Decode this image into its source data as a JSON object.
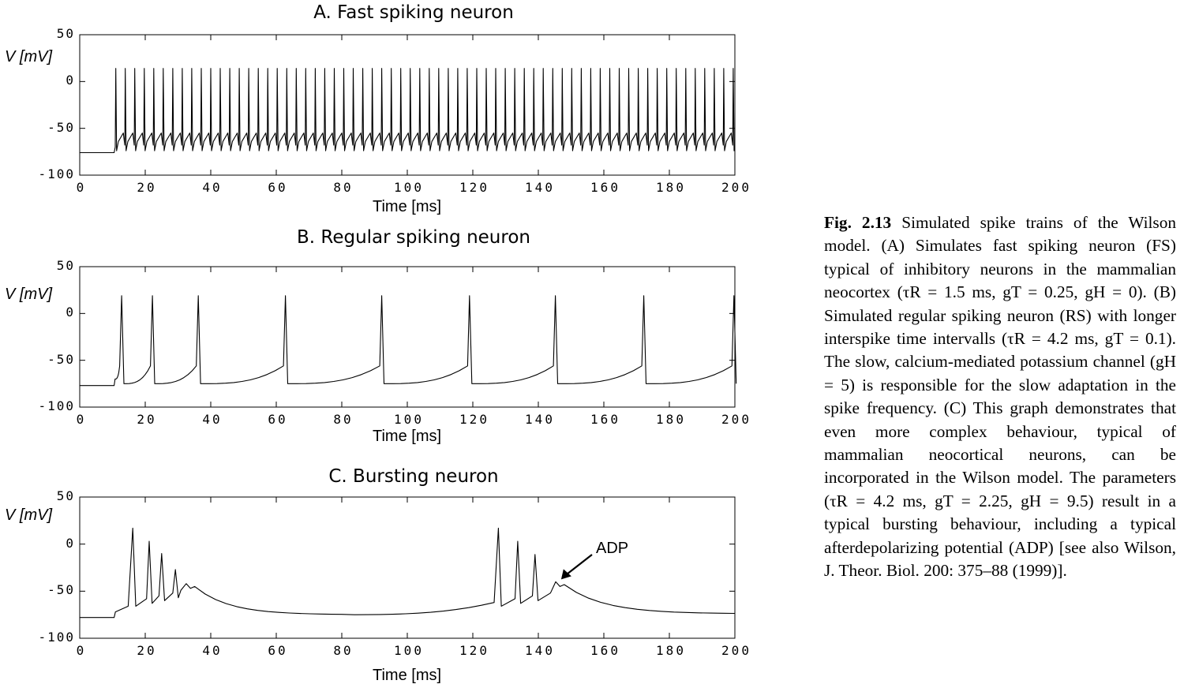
{
  "figure": {
    "caption_label": "Fig. 2.13",
    "caption_text": "Simulated spike trains of the Wilson model. (A) Simulates fast spiking neuron (FS) typical of inhibitory neurons in the mammalian neocortex (τR = 1.5 ms, gT = 0.25, gH = 0). (B) Simulated regular spiking neuron (RS) with longer interspike time intervalls (τR = 4.2 ms, gT = 0.1). The slow, calcium-mediated potassium channel (gH = 5) is responsible for the slow adaptation in the spike frequency. (C) This graph demonstrates that even more complex behaviour, typical of mammalian neocortical neurons, can be incorporated in the Wilson model. The parameters (τR = 4.2 ms, gT = 2.25, gH = 9.5) result in a typical bursting behaviour, including a typical afterdepolarizing potential (ADP) [see also Wilson, J. Theor. Biol. 200: 375–88 (1999)]."
  },
  "chart_data": [
    {
      "type": "line",
      "title": "A. Fast spiking neuron",
      "xlabel": "Time [ms]",
      "ylabel": "V [mV]",
      "xlim": [
        0,
        200
      ],
      "ylim": [
        -100,
        50
      ],
      "xticks": [
        "0",
        "20",
        "40",
        "60",
        "80",
        "100",
        "120",
        "140",
        "160",
        "180",
        "200"
      ],
      "yticks": [
        "50",
        "0",
        "-50",
        "-100"
      ],
      "grid": false,
      "series": [
        {
          "rest_mV": -76,
          "onset_ms": 10.5,
          "spike_times_ms": [
            11,
            13.9,
            16.8,
            19.7,
            22.6,
            25.5,
            28.4,
            31.3,
            34.2,
            37.1,
            40,
            42.9,
            45.8,
            48.7,
            51.6,
            54.5,
            57.4,
            60.3,
            63.2,
            66.1,
            69,
            71.9,
            74.8,
            77.7,
            80.6,
            83.5,
            86.4,
            89.3,
            92.2,
            95.1,
            98,
            100.9,
            103.8,
            106.7,
            109.6,
            112.5,
            115.4,
            118.3,
            121.2,
            124.1,
            127,
            129.9,
            132.8,
            135.7,
            138.6,
            141.5,
            144.4,
            147.3,
            150.2,
            153.1,
            156,
            158.9,
            161.8,
            164.7,
            167.6,
            170.5,
            173.4,
            176.3,
            179.2,
            182.1,
            185,
            187.9,
            190.8,
            193.7,
            196.6,
            199.5
          ],
          "peak_mV": 14,
          "trough_mV": -74
        }
      ]
    },
    {
      "type": "line",
      "title": "B. Regular spiking neuron",
      "xlabel": "Time [ms]",
      "ylabel": "V [mV]",
      "xlim": [
        0,
        200
      ],
      "ylim": [
        -100,
        50
      ],
      "xticks": [
        "0",
        "20",
        "40",
        "60",
        "80",
        "100",
        "120",
        "140",
        "160",
        "180",
        "200"
      ],
      "yticks": [
        "50",
        "0",
        "-50",
        "-100"
      ],
      "grid": false,
      "series": [
        {
          "rest_mV": -77,
          "onset_ms": 10.5,
          "spike_times_ms": [
            12.8,
            22.2,
            36.2,
            62.8,
            92.2,
            119,
            145.2,
            172.2,
            199.7
          ],
          "peak_mV": 19,
          "trough_mV": -75,
          "prespike_mV": -56
        }
      ]
    },
    {
      "type": "line",
      "title": "C. Bursting neuron",
      "xlabel": "Time [ms]",
      "ylabel": "V [mV]",
      "xlim": [
        0,
        200
      ],
      "ylim": [
        -100,
        50
      ],
      "xticks": [
        "0",
        "20",
        "40",
        "60",
        "80",
        "100",
        "120",
        "140",
        "160",
        "180",
        "200"
      ],
      "yticks": [
        "50",
        "0",
        "-50",
        "-100"
      ],
      "grid": false,
      "annotation": {
        "text": "ADP",
        "x_ms": 146,
        "y_mV": -40
      },
      "series": [
        {
          "rest_mV": -78,
          "onset_ms": 10.5,
          "bursts": [
            {
              "spikes": [
                [
                  16.2,
                  17
                ],
                [
                  21.2,
                  3
                ],
                [
                  25,
                  -10
                ],
                [
                  29.2,
                  -27
                ]
              ],
              "adp": [
                32.5,
                -42
              ],
              "end_ms": 80,
              "end_mV": -75
            },
            {
              "spikes": [
                [
                  127.8,
                  17
                ],
                [
                  133.7,
                  3
                ],
                [
                  139,
                  -11
                ]
              ],
              "adp": [
                145.3,
                -40
              ],
              "end_ms": 200,
              "end_mV": -74
            }
          ],
          "pre_burst_mV": -62
        }
      ]
    }
  ]
}
